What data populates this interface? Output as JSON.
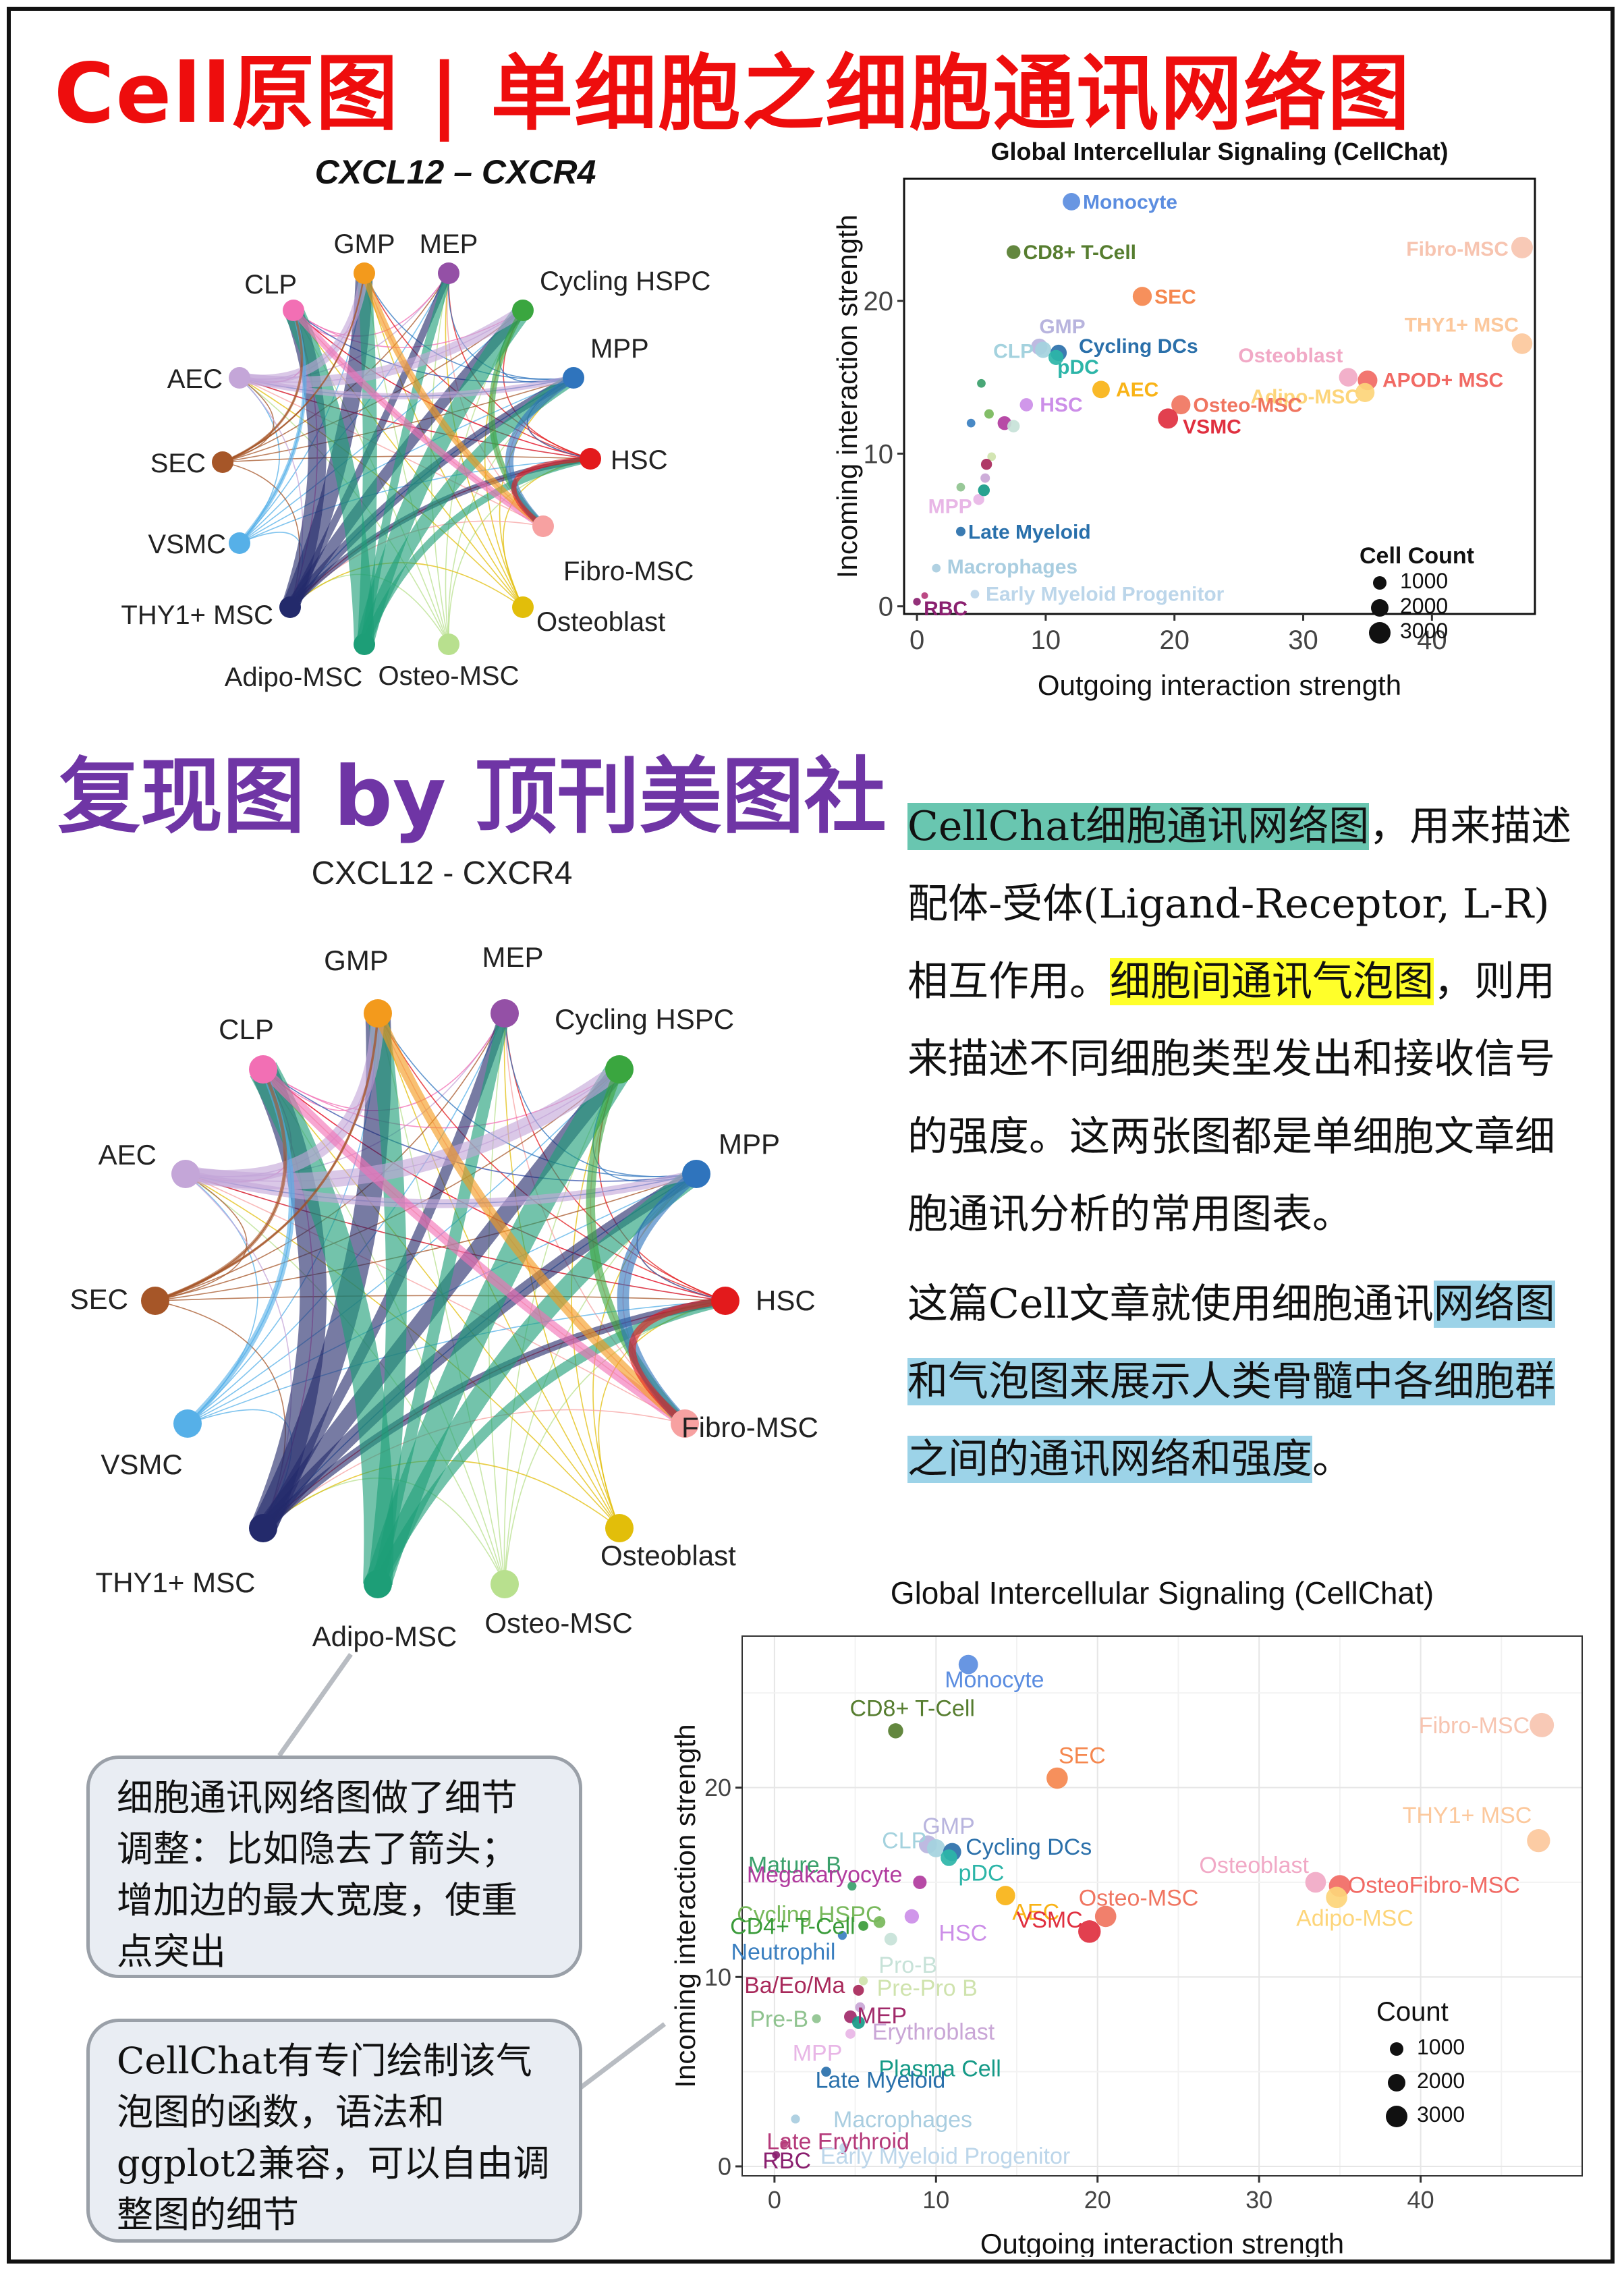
{
  "header": {
    "title": "Cell原图 | 单细胞之细胞通讯网络图",
    "reproduction_title": "复现图 by 顶刊美图社"
  },
  "networks": {
    "original_title": "CXCL12 – CXCR4",
    "reproduction_title": "CXCL12 - CXCR4",
    "nodes": [
      {
        "label": "GMP",
        "color": "#f39a1c"
      },
      {
        "label": "MEP",
        "color": "#9450a6"
      },
      {
        "label": "Cycling HSPC",
        "color": "#3aa63f"
      },
      {
        "label": "MPP",
        "color": "#2f74bd"
      },
      {
        "label": "HSC",
        "color": "#e31a1c"
      },
      {
        "label": "Fibro-MSC",
        "color": "#f7a1a1"
      },
      {
        "label": "Osteoblast",
        "color": "#e2be0a"
      },
      {
        "label": "Osteo-MSC",
        "color": "#b8e08e"
      },
      {
        "label": "Adipo-MSC",
        "color": "#1d9e77"
      },
      {
        "label": "THY1+ MSC",
        "color": "#232a6b"
      },
      {
        "label": "VSMC",
        "color": "#56b0e8"
      },
      {
        "label": "SEC",
        "color": "#a65628"
      },
      {
        "label": "AEC",
        "color": "#c4a6d8"
      },
      {
        "label": "CLP",
        "color": "#f26fb4"
      }
    ]
  },
  "description": {
    "p1_hl1": "CellChat细胞通讯网络图",
    "p1_t1": "，用来描述配体-受体(Ligand-Receptor, L-R) 相互作用。",
    "p1_hl2": "细胞间通讯气泡图",
    "p1_t2": "，则用来描述不同细胞类型发出和接收信号的强度。这两张图都是单细胞文章细胞通讯分析的常用图表。",
    "p2_t1": "这篇Cell文章就使用细胞通讯",
    "p2_hl": "网络图和气泡图来展示人类骨髓中各细胞群之间的通讯网络和强度",
    "p2_t2": "。"
  },
  "callouts": {
    "network_note": "细胞通讯网络图做了细节调整：比如隐去了箭头；增加边的最大宽度，使重点突出",
    "bubble_note": "CellChat有专门绘制该气泡图的函数，语法和ggplot2兼容，可以自由调整图的细节"
  },
  "chart_data": [
    {
      "type": "scatter",
      "title": "Global Intercellular Signaling (CellChat)",
      "xlabel": "Outgoing interaction strength",
      "ylabel": "Incoming interaction strength",
      "xlim": [
        -1,
        48
      ],
      "ylim": [
        -0.5,
        28
      ],
      "xticks": [
        0,
        10,
        20,
        30,
        40
      ],
      "yticks": [
        0,
        10,
        20
      ],
      "grid": false,
      "legend": {
        "title": "Cell Count",
        "entries": [
          "1000",
          "2000",
          "3000"
        ],
        "placement": "bottom-right"
      },
      "points": [
        {
          "label": "Monocyte",
          "x": 12,
          "y": 26.5,
          "count": 2200,
          "color": "#5b8de0"
        },
        {
          "label": "CD8+ T-Cell",
          "x": 7.5,
          "y": 23.2,
          "count": 1600,
          "color": "#567d2f"
        },
        {
          "label": "Fibro-MSC",
          "x": 47,
          "y": 23.5,
          "count": 3000,
          "color": "#f7c4b0"
        },
        {
          "label": "SEC",
          "x": 17.5,
          "y": 20.3,
          "count": 2500,
          "color": "#f5874e"
        },
        {
          "label": "THY1+ MSC",
          "x": 47,
          "y": 17.2,
          "count": 2800,
          "color": "#fcc89c"
        },
        {
          "label": "GMP",
          "x": 9.5,
          "y": 17,
          "count": 2000,
          "color": "#b8b4de"
        },
        {
          "label": "CLP",
          "x": 9.8,
          "y": 16.8,
          "count": 2000,
          "color": "#a4d2de"
        },
        {
          "label": "Cycling DCs",
          "x": 11,
          "y": 16.6,
          "count": 2000,
          "color": "#2b70aa"
        },
        {
          "label": "pDC",
          "x": 10.8,
          "y": 16.3,
          "count": 1800,
          "color": "#2cb5a8"
        },
        {
          "label": "Osteoblast",
          "x": 33.5,
          "y": 15,
          "count": 2400,
          "color": "#f1a9c6"
        },
        {
          "label": "APOD+ MSC",
          "x": 35,
          "y": 14.8,
          "count": 2600,
          "color": "#f16a64"
        },
        {
          "label": "Adipo-MSC",
          "x": 34.8,
          "y": 14,
          "count": 2500,
          "color": "#fdd57a"
        },
        {
          "label": "AEC",
          "x": 14.3,
          "y": 14.2,
          "count": 2200,
          "color": "#f9b316"
        },
        {
          "label": "Osteo-MSC",
          "x": 20.5,
          "y": 13.2,
          "count": 2500,
          "color": "#f07560"
        },
        {
          "label": "VSMC",
          "x": 19.5,
          "y": 12.3,
          "count": 2700,
          "color": "#e03040"
        },
        {
          "label": "HSC",
          "x": 8.5,
          "y": 13.2,
          "count": 1500,
          "color": "#cc8ee8"
        },
        {
          "label": "MPP",
          "x": 4.8,
          "y": 7,
          "count": 1200,
          "color": "#e8b6e6"
        },
        {
          "label": "Late Myeloid",
          "x": 3.4,
          "y": 4.9,
          "count": 1000,
          "color": "#2970ab"
        },
        {
          "label": "Macrophages",
          "x": 1.5,
          "y": 2.5,
          "count": 900,
          "color": "#a9cde0"
        },
        {
          "label": "Early Myeloid Progenitor",
          "x": 4.5,
          "y": 0.8,
          "count": 900,
          "color": "#bcd6ea"
        },
        {
          "label": "RBC",
          "x": 0,
          "y": 0.3,
          "count": 800,
          "color": "#8a1f6f"
        },
        {
          "label": "",
          "x": 5,
          "y": 14.6,
          "count": 900,
          "color": "#3aa06b"
        },
        {
          "label": "",
          "x": 5.6,
          "y": 12.6,
          "count": 1000,
          "color": "#78b85b"
        },
        {
          "label": "",
          "x": 4.2,
          "y": 12,
          "count": 900,
          "color": "#3a7fc0"
        },
        {
          "label": "",
          "x": 6.8,
          "y": 12,
          "count": 1600,
          "color": "#b13b9e"
        },
        {
          "label": "",
          "x": 7.5,
          "y": 11.8,
          "count": 1400,
          "color": "#c7e2d8"
        },
        {
          "label": "",
          "x": 5.8,
          "y": 9.8,
          "count": 900,
          "color": "#cfe3ad"
        },
        {
          "label": "",
          "x": 5.4,
          "y": 9.3,
          "count": 1200,
          "color": "#a8285a"
        },
        {
          "label": "",
          "x": 3.4,
          "y": 7.8,
          "count": 900,
          "color": "#8fc38f"
        },
        {
          "label": "",
          "x": 5.3,
          "y": 8.4,
          "count": 1000,
          "color": "#c9a6d6"
        },
        {
          "label": "",
          "x": 5.2,
          "y": 7.6,
          "count": 1300,
          "color": "#169a87"
        },
        {
          "label": "",
          "x": 0.6,
          "y": 0.7,
          "count": 700,
          "color": "#b53a7a"
        }
      ]
    },
    {
      "type": "scatter",
      "title": "Global Intercellular Signaling (CellChat)",
      "xlabel": "Outgoing interaction strength",
      "ylabel": "Incoming interaction strength",
      "xlim": [
        -2,
        50
      ],
      "ylim": [
        -0.5,
        28
      ],
      "xticks": [
        0,
        10,
        20,
        30,
        40
      ],
      "yticks": [
        0,
        10,
        20
      ],
      "grid": true,
      "legend": {
        "title": "Count",
        "entries": [
          "1000",
          "2000",
          "3000"
        ],
        "placement": "bottom-right"
      },
      "points": [
        {
          "label": "Monocyte",
          "x": 12,
          "y": 26.5,
          "count": 2200,
          "color": "#5b8de0"
        },
        {
          "label": "CD8+ T-Cell",
          "x": 7.5,
          "y": 23,
          "count": 1600,
          "color": "#567d2f"
        },
        {
          "label": "Fibro-MSC",
          "x": 47.5,
          "y": 23.3,
          "count": 3000,
          "color": "#f7c4b0"
        },
        {
          "label": "SEC",
          "x": 17.5,
          "y": 20.5,
          "count": 2500,
          "color": "#f5874e"
        },
        {
          "label": "THY1+ MSC",
          "x": 47.3,
          "y": 17.2,
          "count": 2800,
          "color": "#fcc89c"
        },
        {
          "label": "GMP",
          "x": 9.5,
          "y": 17,
          "count": 2000,
          "color": "#b8b4de"
        },
        {
          "label": "CLP",
          "x": 10,
          "y": 16.8,
          "count": 2000,
          "color": "#a4d2de"
        },
        {
          "label": "Cycling DCs",
          "x": 11,
          "y": 16.6,
          "count": 2000,
          "color": "#2b70aa"
        },
        {
          "label": "pDC",
          "x": 10.8,
          "y": 16.3,
          "count": 1800,
          "color": "#2cb5a8"
        },
        {
          "label": "Osteoblast",
          "x": 33.5,
          "y": 15,
          "count": 2400,
          "color": "#f1a9c6"
        },
        {
          "label": "OsteoFibro-MSC",
          "x": 35,
          "y": 14.8,
          "count": 2600,
          "color": "#f16a64"
        },
        {
          "label": "Adipo-MSC",
          "x": 34.8,
          "y": 14.2,
          "count": 2500,
          "color": "#fdd57a"
        },
        {
          "label": "AEC",
          "x": 14.3,
          "y": 14.3,
          "count": 2200,
          "color": "#f9b316"
        },
        {
          "label": "Osteo-MSC",
          "x": 20.5,
          "y": 13.2,
          "count": 2500,
          "color": "#f07560"
        },
        {
          "label": "VSMC",
          "x": 19.5,
          "y": 12.4,
          "count": 2700,
          "color": "#e03040"
        },
        {
          "label": "HSC",
          "x": 8.5,
          "y": 13.2,
          "count": 1500,
          "color": "#cc8ee8"
        },
        {
          "label": "Mature B",
          "x": 4.8,
          "y": 14.8,
          "count": 900,
          "color": "#3aa06b"
        },
        {
          "label": "Megakaryocyte",
          "x": 9,
          "y": 15,
          "count": 1400,
          "color": "#b13b9e"
        },
        {
          "label": "Cycling HSPC",
          "x": 6.5,
          "y": 12.9,
          "count": 1200,
          "color": "#78b85b"
        },
        {
          "label": "CD4+ T-Cell",
          "x": 5.5,
          "y": 12.7,
          "count": 1000,
          "color": "#3a9b3a"
        },
        {
          "label": "Neutrophil",
          "x": 4.2,
          "y": 12.2,
          "count": 900,
          "color": "#3a7fc0"
        },
        {
          "label": "Pro-B",
          "x": 7.2,
          "y": 12,
          "count": 1300,
          "color": "#c7e2d8"
        },
        {
          "label": "Pre-Pro B",
          "x": 5.5,
          "y": 9.8,
          "count": 900,
          "color": "#cfe3ad"
        },
        {
          "label": "Ba/Eo/Ma",
          "x": 5.2,
          "y": 9.3,
          "count": 1100,
          "color": "#a8285a"
        },
        {
          "label": "Pre-B",
          "x": 2.6,
          "y": 7.8,
          "count": 900,
          "color": "#8fc38f"
        },
        {
          "label": "MEP",
          "x": 4.7,
          "y": 7.9,
          "count": 1300,
          "color": "#a12a6a"
        },
        {
          "label": "MPP",
          "x": 4.7,
          "y": 7,
          "count": 1000,
          "color": "#e8b6e6"
        },
        {
          "label": "Erythroblast",
          "x": 5.3,
          "y": 8.4,
          "count": 1000,
          "color": "#c9a6d6"
        },
        {
          "label": "Plasma Cell",
          "x": 5.2,
          "y": 7.6,
          "count": 1300,
          "color": "#169a87"
        },
        {
          "label": "Late Myeloid",
          "x": 3.2,
          "y": 5,
          "count": 1000,
          "color": "#2970ab"
        },
        {
          "label": "Macrophages",
          "x": 1.3,
          "y": 2.5,
          "count": 900,
          "color": "#a9cde0"
        },
        {
          "label": "Late Erythroid",
          "x": 0.6,
          "y": 1.2,
          "count": 800,
          "color": "#b53a7a"
        },
        {
          "label": "Early Myeloid Progenitor",
          "x": 4.3,
          "y": 1,
          "count": 900,
          "color": "#bcd6ea"
        },
        {
          "label": "RBC",
          "x": 0.1,
          "y": 0.6,
          "count": 800,
          "color": "#8a1f6f"
        }
      ]
    }
  ]
}
